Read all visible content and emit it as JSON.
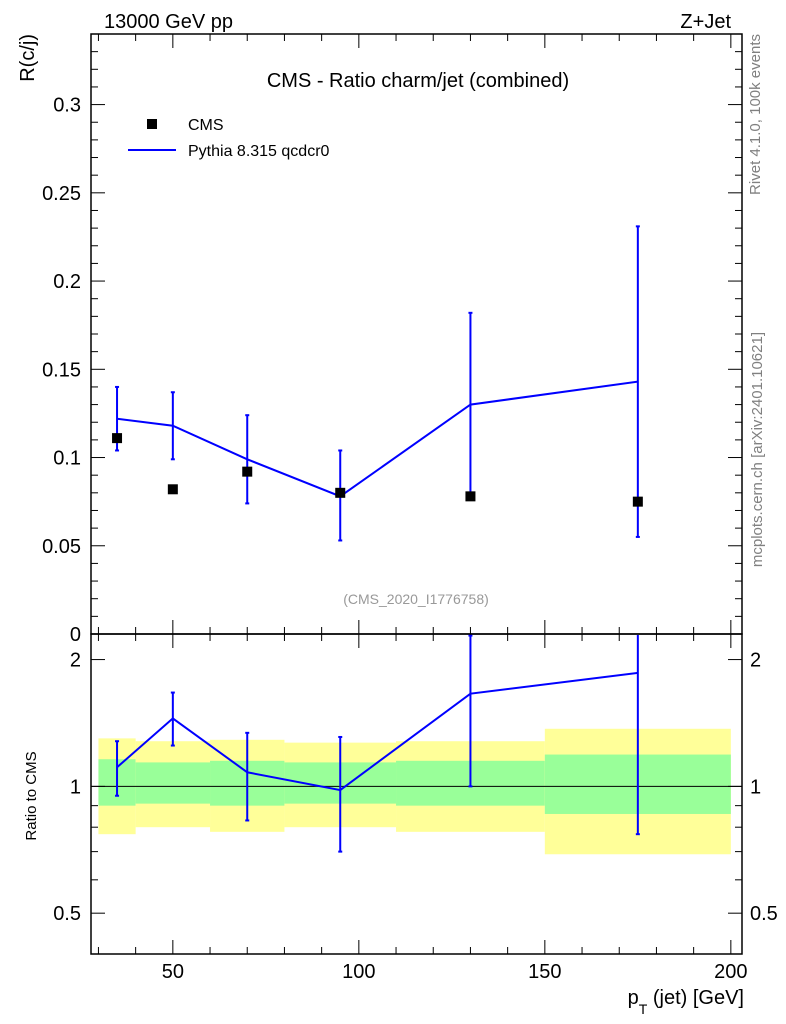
{
  "header": {
    "left": "13000 GeV pp",
    "right": "Z+Jet"
  },
  "side": {
    "rivet": "Rivet 4.1.0,  100k events",
    "source": "mcplots.cern.ch [arXiv:2401.10621]"
  },
  "colors": {
    "mc": "#0000ff",
    "data": "#000000",
    "band_inner": "#99ff99",
    "band_outer": "#ffff99",
    "watermark": "#999999"
  },
  "chart_data": {
    "type": "scatter",
    "title": "CMS - Ratio charm/jet (combined)",
    "watermark": "(CMS_2020_I1776758)",
    "xlabel": "p_T (jet) [GeV]",
    "xlabel_main": "p",
    "xlabel_sub": "T",
    "xlabel_rest": " (jet) [GeV]",
    "ylabel": "R(c/j)",
    "ratio_ylabel": "Ratio to CMS",
    "xlim": [
      28,
      203
    ],
    "ylim": [
      0,
      0.34
    ],
    "ratio_ylim": [
      0.4,
      2.3
    ],
    "x_ticks": [
      "50",
      "100",
      "150",
      "200"
    ],
    "x_tick_values": [
      50,
      100,
      150,
      200
    ],
    "y_ticks": [
      "0",
      "0.05",
      "0.1",
      "0.15",
      "0.2",
      "0.25",
      "0.3"
    ],
    "y_tick_values": [
      0,
      0.05,
      0.1,
      0.15,
      0.2,
      0.25,
      0.3
    ],
    "ratio_ticks": [
      "0.5",
      "1",
      "2"
    ],
    "ratio_tick_values": [
      0.5,
      1,
      2
    ],
    "legend": {
      "data": "CMS",
      "mc": "Pythia 8.315 qcdcr0",
      "position": "top-left"
    },
    "data": {
      "name": "CMS",
      "x": [
        35,
        50,
        70,
        95,
        130,
        175
      ],
      "y": [
        0.111,
        0.082,
        0.092,
        0.08,
        0.078,
        0.075
      ]
    },
    "mc": {
      "name": "Pythia 8.315 qcdcr0",
      "x": [
        35,
        50,
        70,
        95,
        130,
        175
      ],
      "y": [
        0.122,
        0.118,
        0.099,
        0.078,
        0.13,
        0.143
      ],
      "err_low": [
        0.104,
        0.099,
        0.074,
        0.053,
        0.078,
        0.055
      ],
      "err_high": [
        0.14,
        0.137,
        0.124,
        0.104,
        0.182,
        0.231
      ]
    },
    "ratio": {
      "x": [
        35,
        50,
        70,
        95,
        130,
        175
      ],
      "y": [
        1.11,
        1.45,
        1.08,
        0.98,
        1.66,
        1.86
      ],
      "err_low": [
        0.95,
        1.25,
        0.83,
        0.7,
        1.0,
        0.77
      ],
      "err_high": [
        1.28,
        1.67,
        1.34,
        1.31,
        2.28,
        2.3
      ]
    },
    "bands": [
      {
        "x0": 30,
        "x1": 40,
        "inner": [
          0.9,
          1.16
        ],
        "outer": [
          0.77,
          1.3
        ]
      },
      {
        "x0": 40,
        "x1": 60,
        "inner": [
          0.91,
          1.14
        ],
        "outer": [
          0.8,
          1.28
        ]
      },
      {
        "x0": 60,
        "x1": 80,
        "inner": [
          0.9,
          1.15
        ],
        "outer": [
          0.78,
          1.29
        ]
      },
      {
        "x0": 80,
        "x1": 110,
        "inner": [
          0.91,
          1.14
        ],
        "outer": [
          0.8,
          1.27
        ]
      },
      {
        "x0": 110,
        "x1": 150,
        "inner": [
          0.9,
          1.15
        ],
        "outer": [
          0.78,
          1.28
        ]
      },
      {
        "x0": 150,
        "x1": 200,
        "inner": [
          0.86,
          1.19
        ],
        "outer": [
          0.69,
          1.37
        ]
      }
    ]
  }
}
